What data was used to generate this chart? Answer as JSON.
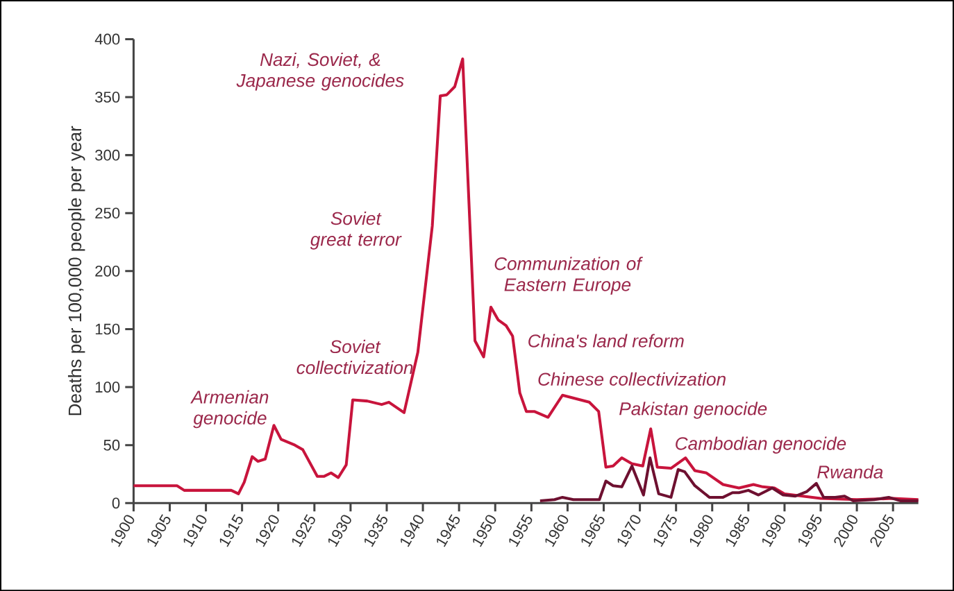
{
  "chart_data": {
    "type": "line",
    "ylabel": "Deaths per 100,000 people per year",
    "xlim": [
      1900,
      2008.5
    ],
    "ylim": [
      0,
      400
    ],
    "xticks": [
      1900,
      1905,
      1910,
      1915,
      1920,
      1925,
      1930,
      1935,
      1940,
      1945,
      1950,
      1955,
      1960,
      1965,
      1970,
      1975,
      1980,
      1985,
      1990,
      1995,
      2000,
      2005
    ],
    "yticks": [
      0,
      50,
      100,
      150,
      200,
      250,
      300,
      350,
      400
    ],
    "grid": false,
    "marker": "none",
    "line_style": "solid",
    "series": [
      {
        "color": "#c8143c",
        "x": [
          1900,
          1906,
          1907,
          1913.5,
          1914.5,
          1915.3,
          1916.4,
          1917.2,
          1918.2,
          1919.4,
          1920.4,
          1922.3,
          1923.4,
          1925.4,
          1926.3,
          1927.3,
          1928.3,
          1929.4,
          1930.3,
          1932.3,
          1934.3,
          1935.3,
          1937.4,
          1939.3,
          1941.3,
          1942.4,
          1943.3,
          1944.4,
          1945.5,
          1947.2,
          1948.4,
          1949.4,
          1950.4,
          1951.5,
          1952.4,
          1953.4,
          1954.3,
          1955.4,
          1957.3,
          1959.3,
          1963,
          1964.3,
          1965.3,
          1966.3,
          1967.5,
          1968.9,
          1970.4,
          1971.5,
          1972.4,
          1974.3,
          1976.3,
          1977.6,
          1979.2,
          1981.5,
          1983.7,
          1985.7,
          1987,
          1988.6,
          1990,
          1995,
          2000,
          2005,
          2008.5
        ],
        "values": [
          15,
          15,
          11,
          11,
          8,
          18,
          40,
          36,
          38,
          67,
          55,
          50,
          46,
          23,
          23,
          26,
          22,
          33,
          89,
          88,
          85,
          87,
          78,
          130,
          239,
          351,
          352,
          359,
          383,
          140,
          126,
          169,
          158,
          153,
          144,
          95,
          79,
          79,
          74,
          93,
          87,
          79,
          31,
          32,
          39,
          34,
          32,
          64,
          31,
          30,
          39,
          28,
          26,
          16,
          13,
          16,
          14,
          13,
          8,
          4,
          3,
          4,
          3
        ]
      },
      {
        "color": "#6e1030",
        "x": [
          1956.2,
          1958.2,
          1959.3,
          1960.8,
          1963,
          1964.4,
          1965.3,
          1966.3,
          1967.5,
          1968.9,
          1970.5,
          1971.4,
          1972.6,
          1974.3,
          1975.3,
          1976.2,
          1977.6,
          1979.6,
          1981.5,
          1982.8,
          1983.7,
          1985,
          1986.4,
          1988.3,
          1989.8,
          1991.5,
          1993.1,
          1994.4,
          1995.4,
          1997,
          1998.3,
          1999.5,
          2002.4,
          2004.4,
          2006,
          2008.5
        ],
        "values": [
          2,
          3,
          5,
          3,
          3,
          3,
          19,
          15,
          14,
          32,
          7,
          39,
          8,
          5,
          29,
          27,
          15,
          5,
          5,
          9,
          9,
          11,
          7,
          13,
          7,
          6,
          10,
          17,
          5,
          5,
          6,
          2,
          3,
          5,
          2,
          2
        ]
      }
    ],
    "annotations": [
      "Nazi, Soviet, & Japanese genocides",
      "Soviet great terror",
      "Communization of Eastern Europe",
      "China's land reform",
      "Chinese collectivization",
      "Pakistan genocide",
      "Cambodian genocide",
      "Rwanda",
      "Soviet collectivization",
      "Armenian genocide"
    ]
  }
}
